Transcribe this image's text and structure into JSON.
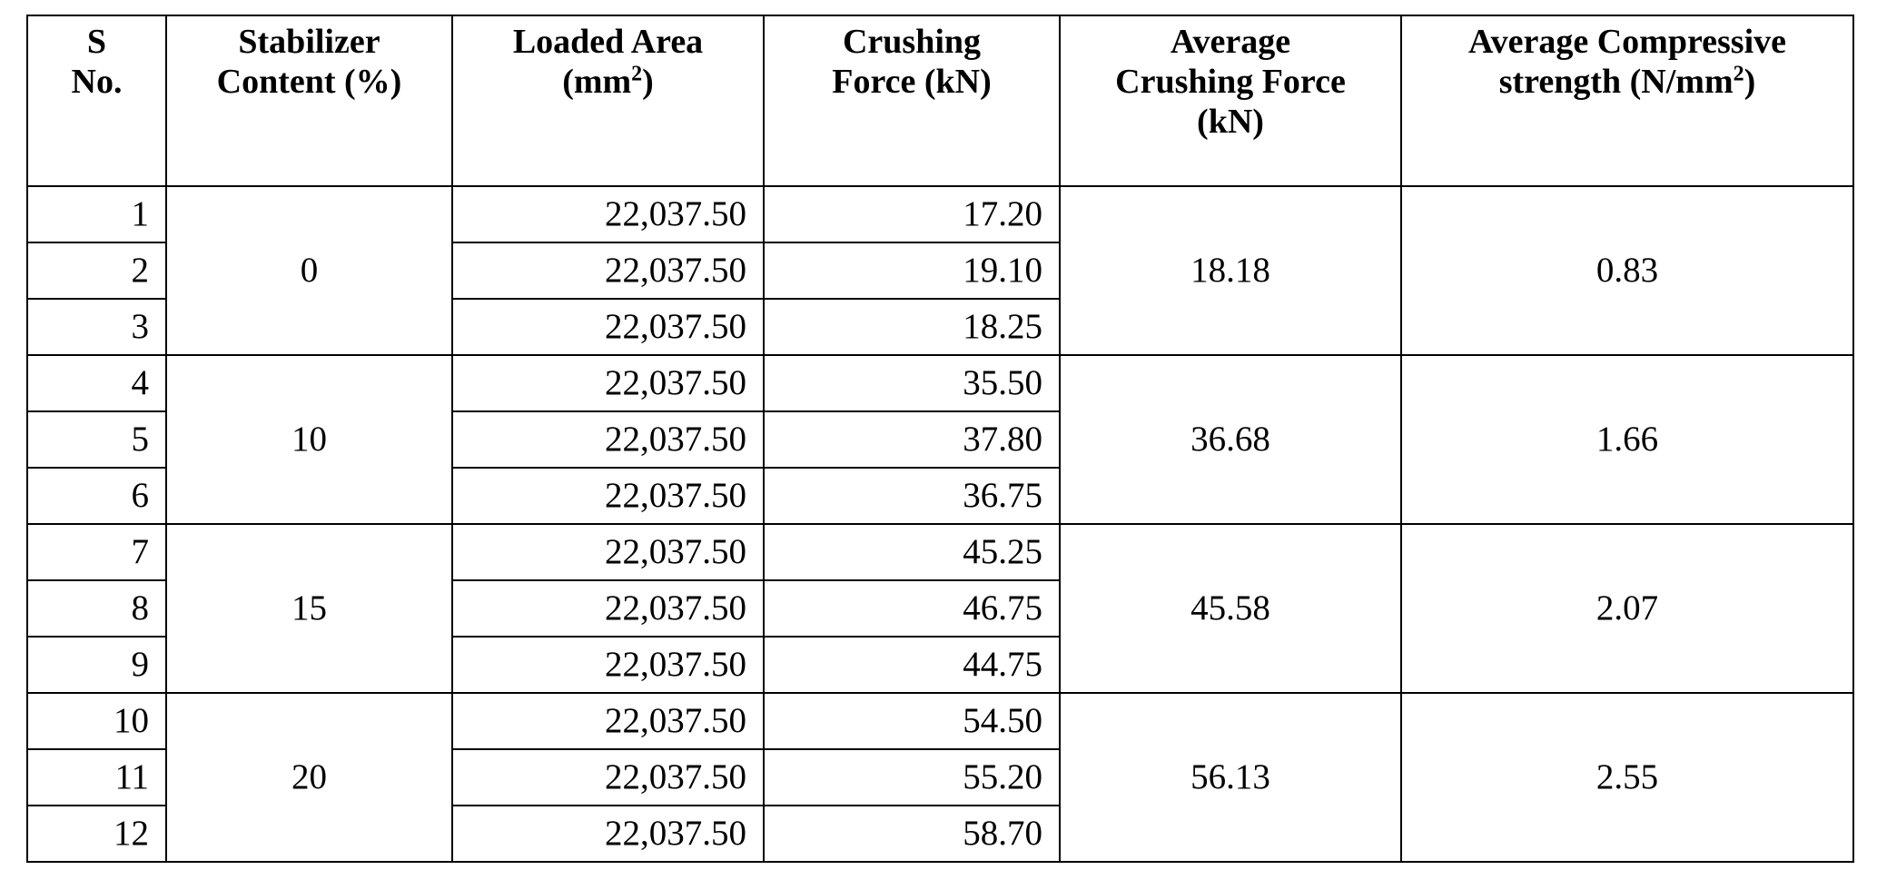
{
  "headers": {
    "sno": [
      "S",
      "No."
    ],
    "stabilizer": [
      "Stabilizer",
      "Content (%)"
    ],
    "area": [
      "Loaded Area",
      "(mm",
      "2",
      ")"
    ],
    "force": [
      "Crushing",
      "Force (kN)"
    ],
    "avg_force": [
      "Average",
      "Crushing Force",
      "(kN)"
    ],
    "avg_strength": [
      "Average Compressive",
      "strength (N/mm",
      "2",
      ")"
    ]
  },
  "groups": [
    {
      "stabilizer": "0",
      "avg_force": "18.18",
      "avg_strength": "0.83",
      "rows": [
        {
          "sno": "1",
          "area": "22,037.50",
          "force": "17.20"
        },
        {
          "sno": "2",
          "area": "22,037.50",
          "force": "19.10"
        },
        {
          "sno": "3",
          "area": "22,037.50",
          "force": "18.25"
        }
      ]
    },
    {
      "stabilizer": "10",
      "avg_force": "36.68",
      "avg_strength": "1.66",
      "rows": [
        {
          "sno": "4",
          "area": "22,037.50",
          "force": "35.50"
        },
        {
          "sno": "5",
          "area": "22,037.50",
          "force": "37.80"
        },
        {
          "sno": "6",
          "area": "22,037.50",
          "force": "36.75"
        }
      ]
    },
    {
      "stabilizer": "15",
      "avg_force": "45.58",
      "avg_strength": "2.07",
      "rows": [
        {
          "sno": "7",
          "area": "22,037.50",
          "force": "45.25"
        },
        {
          "sno": "8",
          "area": "22,037.50",
          "force": "46.75"
        },
        {
          "sno": "9",
          "area": "22,037.50",
          "force": "44.75"
        }
      ]
    },
    {
      "stabilizer": "20",
      "avg_force": "56.13",
      "avg_strength": "2.55",
      "rows": [
        {
          "sno": "10",
          "area": "22,037.50",
          "force": "54.50"
        },
        {
          "sno": "11",
          "area": "22,037.50",
          "force": "55.20"
        },
        {
          "sno": "12",
          "area": "22,037.50",
          "force": "58.70"
        }
      ]
    }
  ]
}
